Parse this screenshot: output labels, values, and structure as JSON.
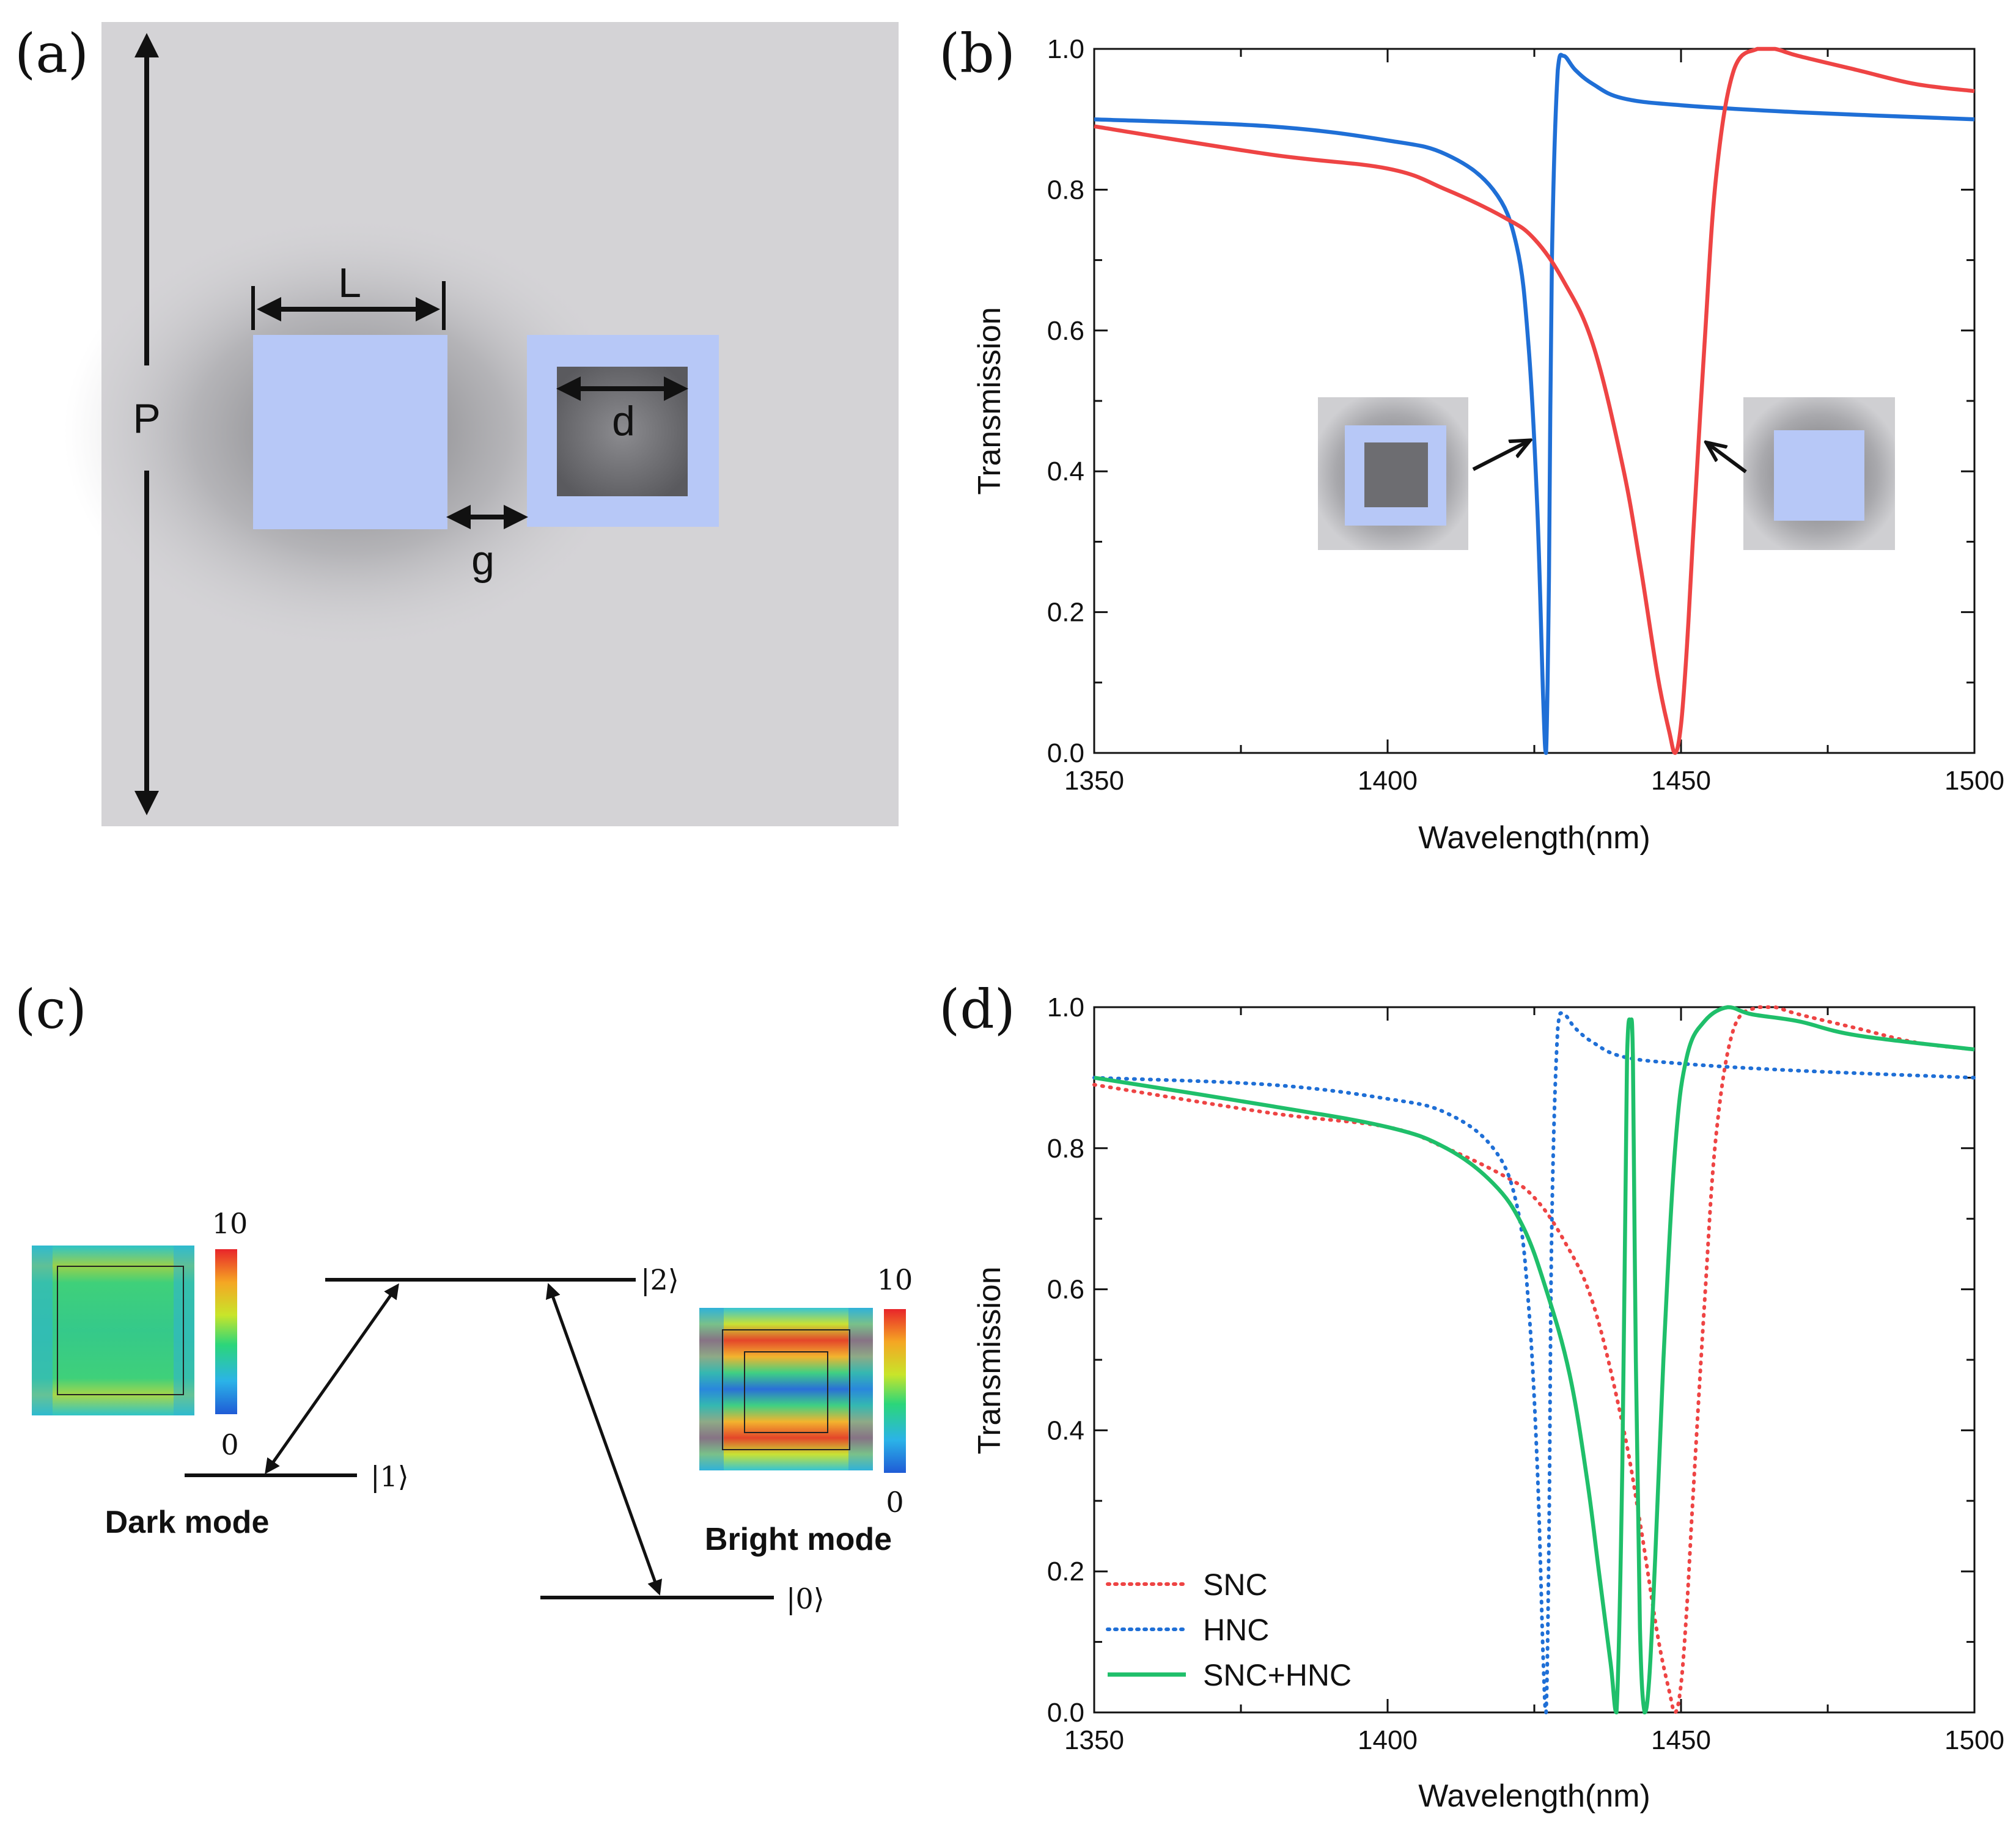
{
  "panels": {
    "a": {
      "label": "(a)",
      "dims": {
        "period": "P",
        "length": "L",
        "inner": "d",
        "gap": "g"
      }
    },
    "b": {
      "label": "(b)",
      "xlabel": "Wavelength(nm)",
      "ylabel": "Transmission",
      "x_ticks": [
        "1350",
        "1400",
        "1450",
        "1500"
      ],
      "y_ticks": [
        "0.0",
        "0.2",
        "0.4",
        "0.6",
        "0.8",
        "1.0"
      ]
    },
    "c": {
      "label": "(c)",
      "states": {
        "s0": "|0⟩",
        "s1": "|1⟩",
        "s2": "|2⟩"
      },
      "dark_mode": "Dark mode",
      "bright_mode": "Bright mode",
      "colorbar": {
        "max": "10",
        "min": "0"
      }
    },
    "d": {
      "label": "(d)",
      "xlabel": "Wavelength(nm)",
      "ylabel": "Transmission",
      "x_ticks": [
        "1350",
        "1400",
        "1450",
        "1500"
      ],
      "y_ticks": [
        "0.0",
        "0.2",
        "0.4",
        "0.6",
        "0.8",
        "1.0"
      ],
      "legend": [
        "SNC",
        "HNC",
        "SNC+HNC"
      ]
    }
  },
  "colors": {
    "snc": "#ee4444",
    "hnc": "#1f6fd6",
    "combined": "#1fbf6a",
    "nano": "#b7c8f7"
  },
  "chart_data": [
    {
      "type": "line",
      "panel": "b",
      "xlabel": "Wavelength(nm)",
      "ylabel": "Transmission",
      "xlim": [
        1350,
        1500
      ],
      "ylim": [
        0,
        1
      ],
      "series": [
        {
          "name": "HNC",
          "style": "solid",
          "x": [
            1350,
            1380,
            1400,
            1410,
            1418,
            1422,
            1424,
            1425.5,
            1426.5,
            1427,
            1427.5,
            1428,
            1429,
            1430,
            1432,
            1435,
            1440,
            1450,
            1470,
            1500
          ],
          "y": [
            0.9,
            0.89,
            0.87,
            0.85,
            0.8,
            0.72,
            0.58,
            0.35,
            0.08,
            0.0,
            0.25,
            0.7,
            0.97,
            0.99,
            0.97,
            0.95,
            0.93,
            0.92,
            0.91,
            0.9
          ]
        },
        {
          "name": "SNC",
          "style": "solid",
          "x": [
            1350,
            1380,
            1400,
            1410,
            1420,
            1425,
            1430,
            1435,
            1440,
            1443,
            1446,
            1448,
            1449,
            1450,
            1451,
            1452,
            1454,
            1456,
            1459,
            1463,
            1466,
            1470,
            1480,
            1490,
            1500
          ],
          "y": [
            0.89,
            0.85,
            0.83,
            0.8,
            0.76,
            0.73,
            0.67,
            0.58,
            0.41,
            0.27,
            0.11,
            0.03,
            0.0,
            0.04,
            0.15,
            0.3,
            0.58,
            0.82,
            0.97,
            1.0,
            1.0,
            0.99,
            0.97,
            0.95,
            0.94
          ]
        }
      ]
    },
    {
      "type": "line",
      "panel": "d",
      "xlabel": "Wavelength(nm)",
      "ylabel": "Transmission",
      "xlim": [
        1350,
        1500
      ],
      "ylim": [
        0,
        1
      ],
      "series": [
        {
          "name": "SNC",
          "style": "dotted",
          "x": [
            1350,
            1380,
            1400,
            1410,
            1420,
            1425,
            1430,
            1435,
            1440,
            1443,
            1446,
            1448,
            1449,
            1450,
            1451,
            1452,
            1454,
            1456,
            1459,
            1463,
            1466,
            1470,
            1480,
            1490,
            1500
          ],
          "y": [
            0.89,
            0.85,
            0.83,
            0.8,
            0.76,
            0.73,
            0.67,
            0.58,
            0.41,
            0.27,
            0.11,
            0.03,
            0.0,
            0.04,
            0.15,
            0.3,
            0.58,
            0.82,
            0.97,
            1.0,
            1.0,
            0.99,
            0.97,
            0.95,
            0.94
          ]
        },
        {
          "name": "HNC",
          "style": "dotted",
          "x": [
            1350,
            1380,
            1400,
            1410,
            1418,
            1422,
            1424,
            1425.5,
            1426.5,
            1427,
            1427.5,
            1428,
            1429,
            1430,
            1432,
            1435,
            1440,
            1450,
            1470,
            1500
          ],
          "y": [
            0.9,
            0.89,
            0.87,
            0.85,
            0.8,
            0.72,
            0.58,
            0.35,
            0.08,
            0.0,
            0.25,
            0.7,
            0.97,
            0.99,
            0.97,
            0.95,
            0.93,
            0.92,
            0.91,
            0.9
          ]
        },
        {
          "name": "SNC+HNC",
          "style": "solid",
          "x": [
            1350,
            1380,
            1400,
            1410,
            1418,
            1423,
            1427,
            1431,
            1434,
            1436,
            1438,
            1439,
            1440,
            1440.8,
            1441.4,
            1441.8,
            1442.3,
            1443,
            1443.8,
            1444.6,
            1445.6,
            1447,
            1449,
            1451,
            1454,
            1458,
            1462,
            1470,
            1480,
            1500
          ],
          "y": [
            0.9,
            0.86,
            0.83,
            0.8,
            0.75,
            0.69,
            0.6,
            0.48,
            0.33,
            0.2,
            0.07,
            0.0,
            0.35,
            0.93,
            0.98,
            0.93,
            0.5,
            0.12,
            0.0,
            0.05,
            0.22,
            0.5,
            0.8,
            0.93,
            0.98,
            1.0,
            0.99,
            0.98,
            0.96,
            0.94
          ]
        }
      ]
    }
  ]
}
